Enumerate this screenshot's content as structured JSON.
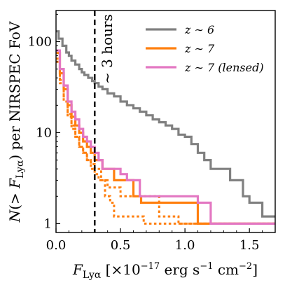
{
  "chart_data": {
    "type": "line",
    "title": "",
    "xlabel": "F_Lyα [×10^-17 erg s^-1 cm^-2]",
    "ylabel": "N(> F_Lyα) per NIRSPEC FoV",
    "xlim": [
      0.0,
      1.7
    ],
    "ylim": [
      0.8,
      220
    ],
    "yscale": "log",
    "grid": false,
    "legend_position": "top-right",
    "x_ticks": [
      0.0,
      0.5,
      1.0,
      1.5
    ],
    "x_tick_labels": [
      "0.0",
      "0.5",
      "1.0",
      "1.5"
    ],
    "y_ticks": [
      1,
      10,
      100
    ],
    "y_tick_labels": [
      "1",
      "10",
      "100"
    ],
    "vline": {
      "x": 0.3,
      "style": "dashed",
      "color": "#000000",
      "label": "~ 3 hours"
    },
    "series": [
      {
        "name": "z ~ 6",
        "legend_label": "z ∼ 6",
        "color": "#808080",
        "style": "solid",
        "show_in_legend": true,
        "x": [
          0.0,
          0.02,
          0.05,
          0.08,
          0.1,
          0.12,
          0.15,
          0.18,
          0.2,
          0.22,
          0.25,
          0.28,
          0.3,
          0.33,
          0.36,
          0.4,
          0.45,
          0.5,
          0.55,
          0.6,
          0.65,
          0.7,
          0.75,
          0.8,
          0.85,
          0.9,
          0.95,
          1.0,
          1.05,
          1.1,
          1.15,
          1.2,
          1.3,
          1.35,
          1.4,
          1.45,
          1.5,
          1.6,
          1.7
        ],
        "y": [
          130,
          108,
          90,
          76,
          70,
          62,
          56,
          50,
          46,
          43,
          40,
          37,
          35,
          32,
          30,
          27,
          25,
          22,
          20,
          18.5,
          17,
          15.5,
          14,
          13,
          12,
          11,
          9.5,
          9,
          7.5,
          6,
          5,
          4,
          4,
          3,
          3,
          2,
          1.7,
          1.2,
          1.2
        ]
      },
      {
        "name": "z ~ 7",
        "legend_label": "z ∼ 7",
        "color": "#ff7f0e",
        "style": "solid",
        "show_in_legend": true,
        "x": [
          0.0,
          0.03,
          0.06,
          0.09,
          0.12,
          0.15,
          0.18,
          0.21,
          0.24,
          0.27,
          0.3,
          0.33,
          0.36,
          0.4,
          0.45,
          0.5,
          0.55,
          0.6,
          0.63,
          0.66,
          0.7,
          0.8,
          0.9,
          1.0,
          1.1
        ],
        "y": [
          75,
          45,
          30,
          20,
          15,
          12,
          10,
          8,
          7,
          6,
          5,
          5,
          4,
          4,
          3,
          3,
          3,
          2,
          2,
          1.7,
          1.7,
          1.7,
          1.7,
          1.7,
          1.0
        ]
      },
      {
        "name": "z ~ 7 (lensed)",
        "legend_label": "z ∼ 7 (lensed)",
        "color": "#e377c2",
        "style": "solid",
        "show_in_legend": true,
        "x": [
          0.0,
          0.03,
          0.06,
          0.09,
          0.12,
          0.15,
          0.18,
          0.21,
          0.24,
          0.27,
          0.3,
          0.33,
          0.36,
          0.4,
          0.45,
          0.5,
          0.55,
          0.6,
          0.65,
          0.7,
          0.8,
          1.0,
          1.1,
          1.2,
          1.4,
          1.55
        ],
        "y": [
          80,
          50,
          33,
          22,
          17,
          14,
          11,
          9,
          8,
          7,
          6,
          5,
          4,
          4,
          4,
          3.5,
          3,
          3,
          2,
          2,
          2,
          2,
          1.7,
          1.0,
          1.0,
          1.0
        ]
      },
      {
        "name": "z ~ 7 (realization 2)",
        "color": "#ff7f0e",
        "style": "dotted",
        "show_in_legend": false,
        "x": [
          0.0,
          0.03,
          0.06,
          0.09,
          0.12,
          0.15,
          0.18,
          0.21,
          0.24,
          0.27,
          0.3,
          0.33,
          0.38,
          0.42,
          0.45,
          0.5,
          0.6,
          0.68,
          0.8
        ],
        "y": [
          60,
          35,
          22,
          15,
          11,
          9,
          7,
          6,
          5,
          4,
          3.5,
          3,
          2,
          1.7,
          1.2,
          1.2,
          1.2,
          1.0,
          1.0
        ]
      },
      {
        "name": "z ~ 7 (realization 3)",
        "color": "#ff7f0e",
        "style": "dotted",
        "show_in_legend": false,
        "x": [
          0.0,
          0.03,
          0.06,
          0.09,
          0.12,
          0.15,
          0.18,
          0.21,
          0.24,
          0.27,
          0.3,
          0.35,
          0.4,
          0.5,
          0.6,
          0.7,
          0.8,
          0.95
        ],
        "y": [
          65,
          38,
          25,
          16,
          12,
          9,
          7,
          6,
          5,
          4.5,
          4,
          3,
          2.5,
          2,
          2,
          2,
          1.2,
          1.0
        ]
      }
    ],
    "annotation": "∼ 3 hours"
  }
}
